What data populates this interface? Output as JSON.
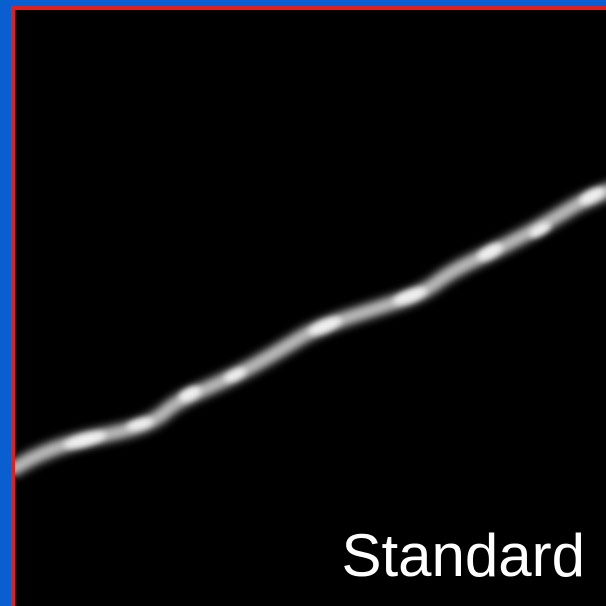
{
  "label": "Standard"
}
